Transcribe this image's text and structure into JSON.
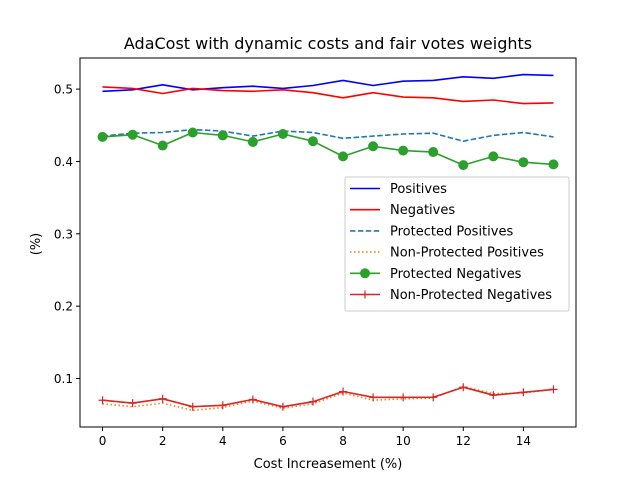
{
  "chart_data": {
    "type": "line",
    "title": "AdaCost with dynamic costs and fair votes weights",
    "xlabel": "Cost Increasement (%)",
    "ylabel": "(%)",
    "xlim": [
      -0.75,
      15.75
    ],
    "ylim": [
      0.033,
      0.543
    ],
    "xticks": [
      0,
      2,
      4,
      6,
      8,
      10,
      12,
      14
    ],
    "yticks": [
      0.1,
      0.2,
      0.3,
      0.4,
      0.5
    ],
    "grid": false,
    "legend_position": "center-right",
    "x": [
      0,
      1,
      2,
      3,
      4,
      5,
      6,
      7,
      8,
      9,
      10,
      11,
      12,
      13,
      14,
      15
    ],
    "series": [
      {
        "name": "Positives",
        "color": "#0000ff",
        "style": "solid",
        "marker": "none",
        "values": [
          0.497,
          0.499,
          0.506,
          0.499,
          0.502,
          0.504,
          0.501,
          0.505,
          0.512,
          0.505,
          0.511,
          0.512,
          0.517,
          0.515,
          0.52,
          0.519
        ]
      },
      {
        "name": "Negatives",
        "color": "#ff0000",
        "style": "solid",
        "marker": "none",
        "values": [
          0.503,
          0.501,
          0.494,
          0.501,
          0.498,
          0.497,
          0.499,
          0.495,
          0.488,
          0.495,
          0.489,
          0.488,
          0.483,
          0.485,
          0.48,
          0.481
        ]
      },
      {
        "name": "Protected Positives",
        "color": "#1f77b4",
        "style": "dashed",
        "marker": "none",
        "values": [
          0.435,
          0.439,
          0.44,
          0.444,
          0.442,
          0.435,
          0.442,
          0.44,
          0.432,
          0.435,
          0.438,
          0.439,
          0.428,
          0.436,
          0.44,
          0.434
        ]
      },
      {
        "name": "Non-Protected Positives",
        "color": "#ff7f0e",
        "style": "dotted",
        "marker": "none",
        "values": [
          0.065,
          0.061,
          0.066,
          0.056,
          0.06,
          0.069,
          0.059,
          0.065,
          0.08,
          0.07,
          0.072,
          0.073,
          0.089,
          0.079,
          0.08,
          0.085
        ]
      },
      {
        "name": "Protected Negatives",
        "color": "#2ca02c",
        "style": "solid",
        "marker": "circle",
        "values": [
          0.434,
          0.437,
          0.422,
          0.44,
          0.436,
          0.427,
          0.438,
          0.428,
          0.407,
          0.421,
          0.415,
          0.413,
          0.395,
          0.407,
          0.399,
          0.396
        ]
      },
      {
        "name": "Non-Protected Negatives",
        "color": "#d62728",
        "style": "solid",
        "marker": "plus",
        "values": [
          0.07,
          0.066,
          0.072,
          0.061,
          0.063,
          0.071,
          0.061,
          0.068,
          0.082,
          0.074,
          0.074,
          0.074,
          0.088,
          0.077,
          0.081,
          0.085
        ]
      }
    ]
  }
}
